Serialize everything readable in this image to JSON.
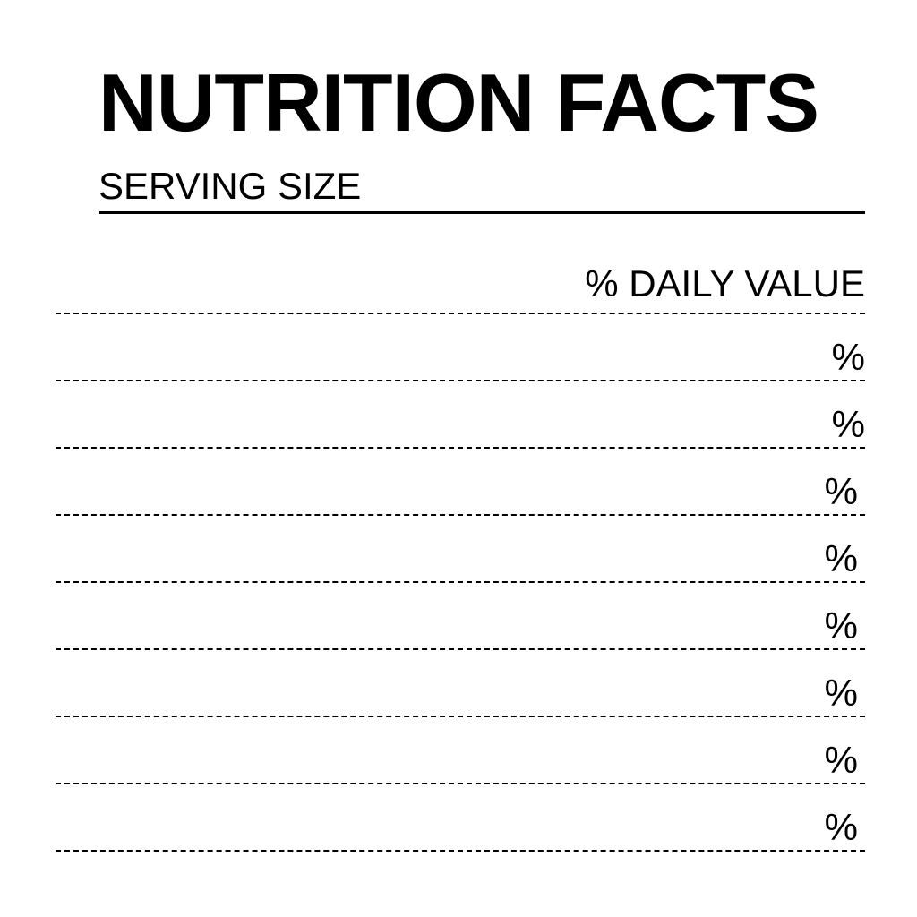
{
  "label": {
    "title": "NUTRITION FACTS",
    "serving_size_label": "SERVING SIZE",
    "daily_value_header": "% DAILY VALUE",
    "rows": [
      {
        "percent_symbol": "%"
      },
      {
        "percent_symbol": "%"
      },
      {
        "percent_symbol": "%"
      },
      {
        "percent_symbol": "%"
      },
      {
        "percent_symbol": "%"
      },
      {
        "percent_symbol": "%"
      },
      {
        "percent_symbol": "%"
      },
      {
        "percent_symbol": "%"
      }
    ]
  }
}
